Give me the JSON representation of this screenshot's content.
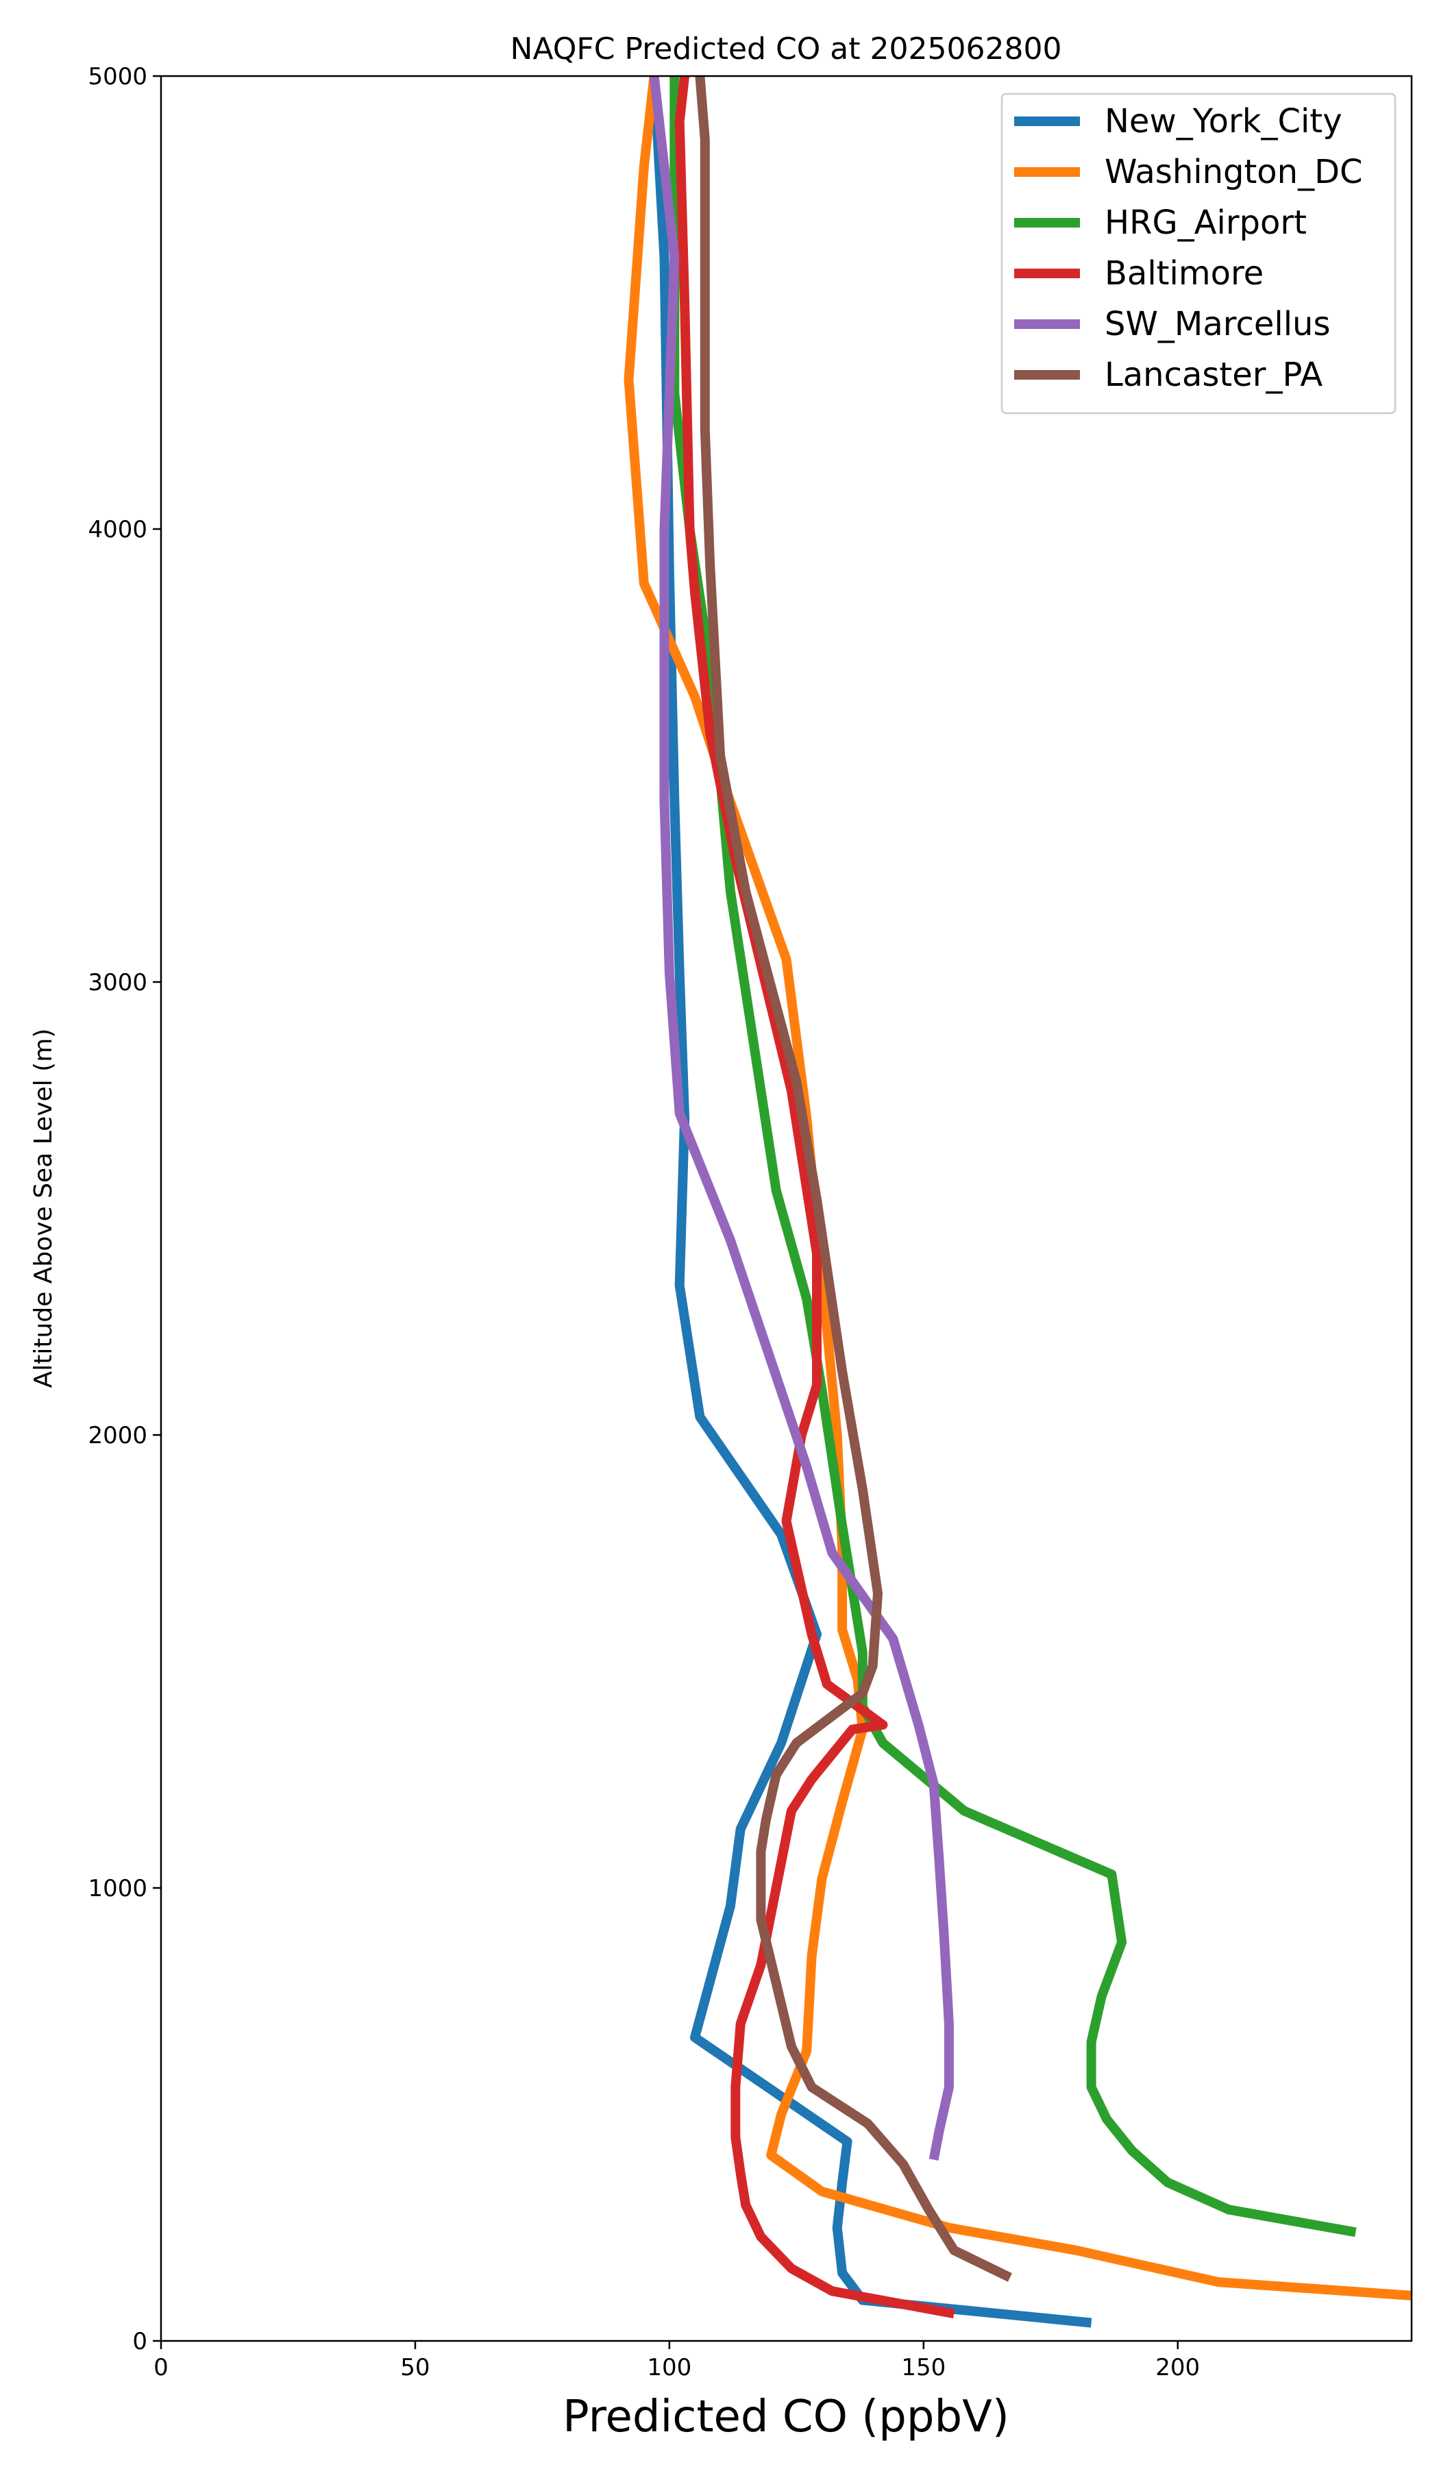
{
  "chart_data": {
    "type": "line",
    "title": "NAQFC Predicted CO at 2025062800",
    "xlabel": "Predicted CO (ppbV)",
    "ylabel": "Altitude Above Sea Level (m)",
    "xlim": [
      0,
      246
    ],
    "ylim": [
      0,
      5000
    ],
    "xticks": [
      0,
      50,
      100,
      150,
      200
    ],
    "yticks": [
      0,
      1000,
      2000,
      3000,
      4000,
      5000
    ],
    "grid": false,
    "legend": "top-right",
    "series": [
      {
        "name": "New_York_City",
        "color": "#1f77b4",
        "x": [
          183,
          138,
          134,
          133,
          134,
          135,
          105,
          112,
          114,
          122,
          129,
          122,
          106,
          102,
          103,
          102,
          101,
          100,
          99,
          97
        ],
        "y": [
          40,
          90,
          150,
          250,
          350,
          440,
          670,
          960,
          1130,
          1320,
          1560,
          1780,
          2040,
          2330,
          2700,
          3020,
          3400,
          3900,
          4600,
          5000
        ]
      },
      {
        "name": "Washington_DC",
        "color": "#ff7f0e",
        "x": [
          246,
          208,
          180,
          155,
          130,
          120,
          122,
          127,
          128,
          130,
          134,
          138,
          137,
          134,
          134,
          133,
          130,
          127,
          123,
          110,
          105,
          95,
          92,
          95,
          97
        ],
        "y": [
          100,
          130,
          200,
          250,
          330,
          410,
          500,
          640,
          850,
          1020,
          1190,
          1350,
          1460,
          1570,
          1750,
          2000,
          2350,
          2700,
          3050,
          3460,
          3630,
          3880,
          4330,
          4800,
          5000
        ]
      },
      {
        "name": "HRG_Airport",
        "color": "#2ca02c",
        "x": [
          235,
          210,
          198,
          191,
          186,
          183,
          183,
          185,
          189,
          187,
          158,
          142,
          138,
          138,
          134,
          130,
          127,
          121,
          112,
          108,
          104,
          101,
          101,
          101
        ],
        "y": [
          240,
          290,
          350,
          420,
          490,
          560,
          660,
          760,
          880,
          1030,
          1170,
          1320,
          1400,
          1520,
          1800,
          2100,
          2300,
          2540,
          3200,
          3700,
          4000,
          4300,
          4800,
          5000
        ]
      },
      {
        "name": "Baltimore",
        "color": "#d62728",
        "x": [
          156,
          132,
          124,
          118,
          115,
          114,
          113,
          113,
          114,
          118,
          121,
          124,
          128,
          136,
          142,
          131,
          128,
          123,
          126,
          129,
          129,
          124,
          113,
          108,
          105,
          104,
          103,
          102,
          103
        ],
        "y": [
          60,
          110,
          160,
          230,
          300,
          370,
          450,
          560,
          700,
          830,
          1000,
          1170,
          1240,
          1350,
          1360,
          1450,
          1560,
          1810,
          2000,
          2110,
          2400,
          2760,
          3270,
          3550,
          3860,
          4000,
          4500,
          4900,
          5000
        ]
      },
      {
        "name": "SW_Marcellus",
        "color": "#9467bd",
        "x": [
          152,
          153,
          155,
          155,
          154,
          153,
          152,
          149,
          144,
          132,
          127,
          112,
          102,
          100,
          99,
          99,
          99,
          100,
          101,
          97
        ],
        "y": [
          400,
          460,
          560,
          700,
          900,
          1070,
          1230,
          1360,
          1550,
          1740,
          1930,
          2430,
          2710,
          3020,
          3400,
          3700,
          4000,
          4300,
          4600,
          5000
        ]
      },
      {
        "name": "Lancaster_PA",
        "color": "#8c564b",
        "x": [
          167,
          156,
          151,
          146,
          139,
          128,
          124,
          121,
          118,
          118,
          119,
          121,
          125,
          138,
          140,
          141,
          138,
          134,
          129,
          125,
          115,
          110,
          108,
          107,
          107,
          106
        ],
        "y": [
          140,
          200,
          290,
          390,
          480,
          560,
          650,
          790,
          930,
          1080,
          1150,
          1250,
          1320,
          1430,
          1490,
          1650,
          1880,
          2140,
          2520,
          2780,
          3200,
          3500,
          3920,
          4220,
          4860,
          5000
        ]
      }
    ]
  }
}
